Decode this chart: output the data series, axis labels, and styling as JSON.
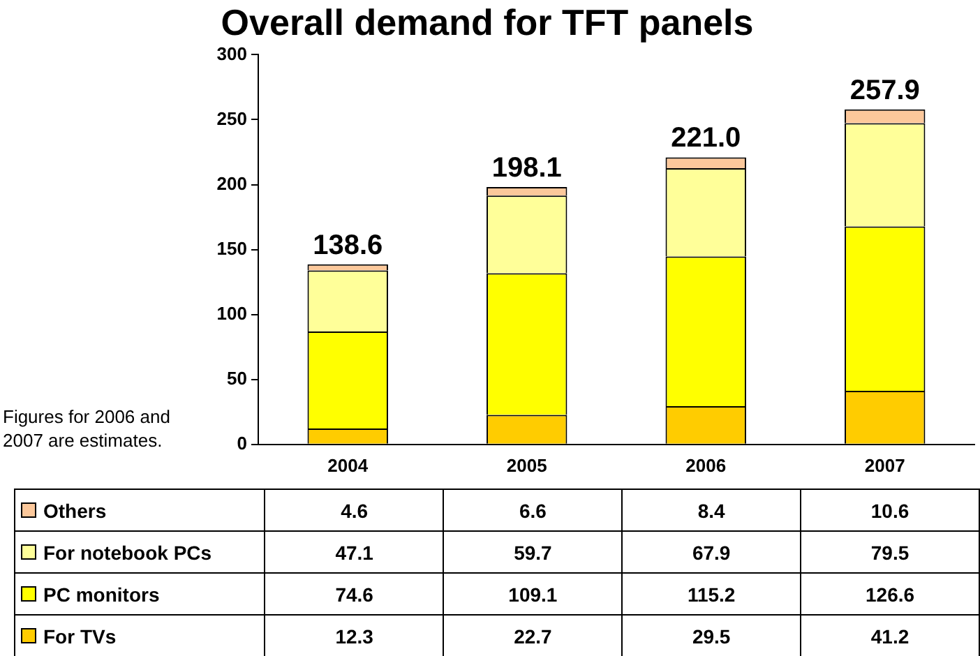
{
  "chart_data": {
    "type": "bar",
    "title": "Overall demand for TFT panels",
    "categories": [
      "2004",
      "2005",
      "2006",
      "2007"
    ],
    "stacked": true,
    "series": [
      {
        "name": "For TVs",
        "color": "#ffcc00",
        "values": [
          12.3,
          22.7,
          29.5,
          41.2
        ]
      },
      {
        "name": "PC monitors",
        "color": "#ffff00",
        "values": [
          74.6,
          109.1,
          115.2,
          126.6
        ]
      },
      {
        "name": "For notebook PCs",
        "color": "#ffff99",
        "values": [
          47.1,
          59.7,
          67.9,
          79.5
        ]
      },
      {
        "name": "Others",
        "color": "#fcc89b",
        "values": [
          4.6,
          6.6,
          8.4,
          10.6
        ]
      }
    ],
    "totals": [
      "138.6",
      "198.1",
      "221.0",
      "257.9"
    ],
    "ylim": [
      0,
      300
    ],
    "yticks": [
      0,
      50,
      100,
      150,
      200,
      250,
      300
    ],
    "grid": false,
    "legend": "bottom",
    "data_labels": true,
    "annotations": [
      "Figures for 2006 and 2007 are estimates."
    ]
  }
}
